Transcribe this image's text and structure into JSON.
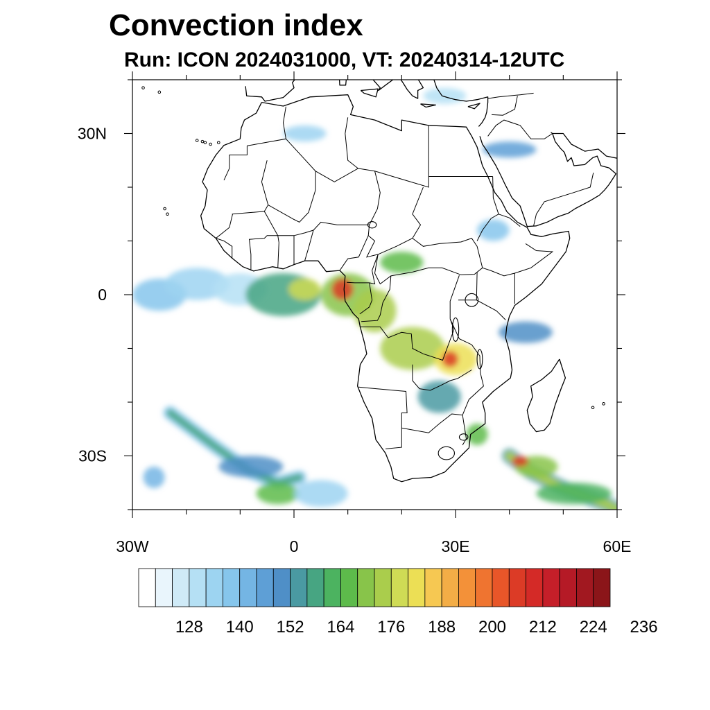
{
  "title": "Convection index",
  "subtitle": "Run: ICON 2024031000,  VT: 20240314-12UTC",
  "map": {
    "lon_range": [
      -30,
      60
    ],
    "lat_range": [
      -40,
      40
    ],
    "lon_ticks": [
      {
        "value": -30,
        "label": "30W"
      },
      {
        "value": 0,
        "label": "0"
      },
      {
        "value": 30,
        "label": "30E"
      },
      {
        "value": 60,
        "label": "60E"
      }
    ],
    "lat_ticks": [
      {
        "value": 30,
        "label": "30N"
      },
      {
        "value": 0,
        "label": "0"
      },
      {
        "value": -30,
        "label": "30S"
      }
    ]
  },
  "colorbar": {
    "colors": [
      "#ffffff",
      "#e9f5fc",
      "#cfeaf7",
      "#b5e0f4",
      "#9dd4f1",
      "#86c6ec",
      "#74b5e4",
      "#5e9fd6",
      "#4f8fc7",
      "#4a9aa2",
      "#47a582",
      "#4cb360",
      "#5dbb4b",
      "#88c44a",
      "#aacd4c",
      "#cfdb55",
      "#ecdf55",
      "#f6c852",
      "#f3ad46",
      "#f39139",
      "#ef7430",
      "#e85629",
      "#dc3b26",
      "#d42a27",
      "#c51f29",
      "#b51a26",
      "#a11820",
      "#8b1519"
    ],
    "labels": [
      "128",
      "140",
      "152",
      "164",
      "176",
      "188",
      "200",
      "212",
      "224",
      "236"
    ]
  },
  "regions": [
    {
      "lon": -25,
      "lat": 0,
      "rx": 5,
      "ry": 3,
      "level": 5
    },
    {
      "lon": -18,
      "lat": 2,
      "rx": 6,
      "ry": 3,
      "level": 4
    },
    {
      "lon": -10,
      "lat": 1,
      "rx": 5,
      "ry": 3,
      "level": 3
    },
    {
      "lon": -2,
      "lat": 0,
      "rx": 7,
      "ry": 4,
      "level": 10
    },
    {
      "lon": 2,
      "lat": 1,
      "rx": 3,
      "ry": 2,
      "level": 15
    },
    {
      "lon": 10,
      "lat": 0,
      "rx": 5,
      "ry": 4,
      "level": 13
    },
    {
      "lon": 9,
      "lat": 1,
      "rx": 2,
      "ry": 2,
      "level": 22
    },
    {
      "lon": 15,
      "lat": -3,
      "rx": 4,
      "ry": 4,
      "level": 14
    },
    {
      "lon": 20,
      "lat": 6,
      "rx": 4,
      "ry": 2,
      "level": 12
    },
    {
      "lon": 22,
      "lat": -10,
      "rx": 6,
      "ry": 4,
      "level": 14
    },
    {
      "lon": 30,
      "lat": -12,
      "rx": 4,
      "ry": 3,
      "level": 16
    },
    {
      "lon": 29,
      "lat": -12,
      "rx": 1.5,
      "ry": 1.5,
      "level": 22
    },
    {
      "lon": 27,
      "lat": -19,
      "rx": 4,
      "ry": 3,
      "level": 9
    },
    {
      "lon": 34,
      "lat": -26,
      "rx": 2,
      "ry": 2,
      "level": 12
    },
    {
      "lon": 43,
      "lat": -7,
      "rx": 5,
      "ry": 2,
      "level": 8
    },
    {
      "lon": 40,
      "lat": 27,
      "rx": 5,
      "ry": 1.5,
      "level": 7
    },
    {
      "lon": 37,
      "lat": 12,
      "rx": 3,
      "ry": 2,
      "level": 5
    },
    {
      "lon": 2,
      "lat": 30,
      "rx": 4,
      "ry": 1.5,
      "level": 4
    },
    {
      "lon": 28,
      "lat": 37,
      "rx": 4,
      "ry": 1.5,
      "level": 3
    },
    {
      "lon": 45,
      "lat": -32,
      "rx": 4,
      "ry": 2,
      "level": 13
    },
    {
      "lon": 42,
      "lat": -31,
      "rx": 1.5,
      "ry": 1,
      "level": 22
    },
    {
      "lon": 52,
      "lat": -37,
      "rx": 7,
      "ry": 2,
      "level": 11
    },
    {
      "lon": -8,
      "lat": -32,
      "rx": 6,
      "ry": 2,
      "level": 8
    },
    {
      "lon": -3,
      "lat": -37,
      "rx": 4,
      "ry": 2,
      "level": 12
    },
    {
      "lon": 5,
      "lat": -37,
      "rx": 5,
      "ry": 2.5,
      "level": 4
    },
    {
      "lon": -26,
      "lat": -34,
      "rx": 2,
      "ry": 2,
      "level": 6
    }
  ],
  "band_sw": {
    "points": [
      [
        -23,
        -22
      ],
      [
        -15,
        -28
      ],
      [
        -8,
        -33
      ],
      [
        -3,
        -35
      ],
      [
        1,
        -34
      ]
    ],
    "level": 10
  },
  "band_se": {
    "points": [
      [
        40,
        -30
      ],
      [
        44,
        -33
      ],
      [
        50,
        -36
      ],
      [
        58,
        -39
      ],
      [
        60,
        -40
      ]
    ],
    "level": 14
  }
}
